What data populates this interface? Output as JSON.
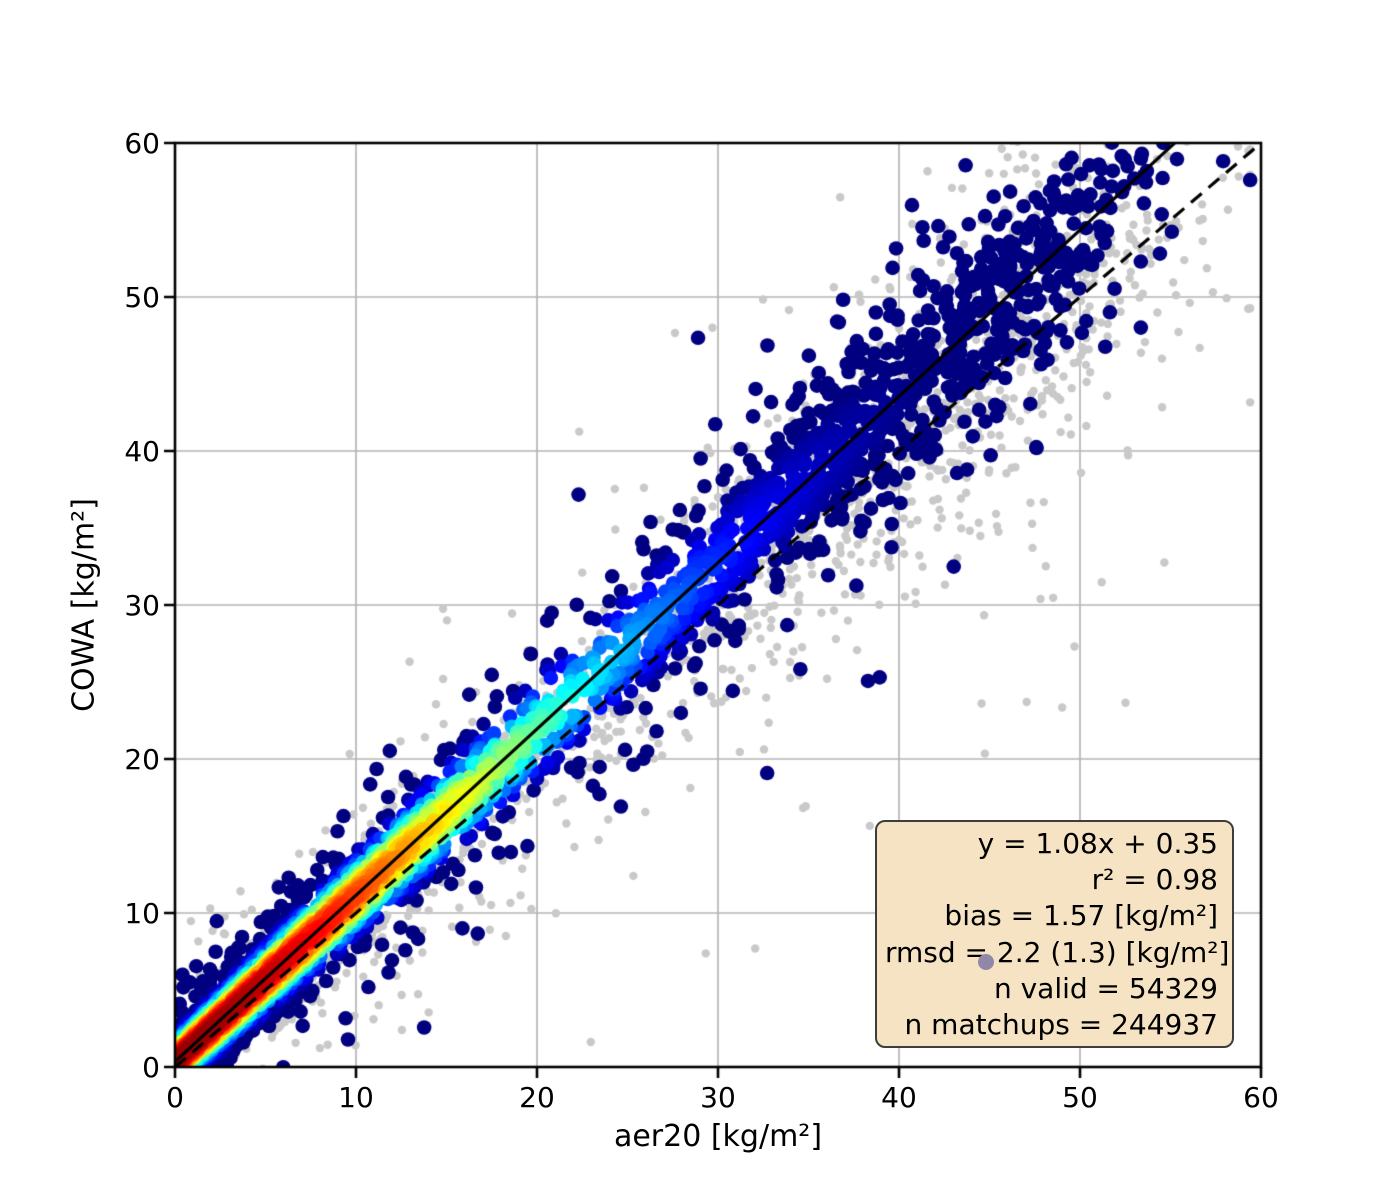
{
  "chart_data": {
    "type": "scatter",
    "title": "",
    "xlabel": "aer20 [kg/m²]",
    "ylabel": "COWA [kg/m²]",
    "xlim": [
      0,
      60
    ],
    "ylim": [
      0,
      60
    ],
    "xticks": [
      "0",
      "10",
      "20",
      "30",
      "40",
      "50",
      "60"
    ],
    "yticks": [
      "0",
      "10",
      "20",
      "30",
      "40",
      "50",
      "60"
    ],
    "grid": true,
    "grid_color": "#b5b5b5",
    "spine_color": "#000000",
    "identity_line": {
      "style": "dashed",
      "color": "#000000",
      "from": [
        0,
        0
      ],
      "to": [
        60,
        60
      ]
    },
    "regression_line": {
      "style": "solid",
      "color": "#000000",
      "slope": 1.08,
      "intercept": 0.35
    },
    "stats": {
      "equation": "y = 1.08x + 0.35",
      "r2": 0.98,
      "bias": "1.57 [kg/m²]",
      "rmsd": "2.2 (1.3) [kg/m²]",
      "n_valid": 54329,
      "n_matchups": 244937
    },
    "stats_box": {
      "lines": [
        "y = 1.08x + 0.35",
        "r² = 0.98",
        "bias = 1.57 [kg/m²]",
        "rmsd = 2.2 (1.3) [kg/m²]",
        "n valid = 54329",
        "n matchups = 244937"
      ],
      "background": "#f5e3c3",
      "border_color": "#3d3d3d"
    },
    "colormap": "jet",
    "background_points": {
      "n": 2400,
      "color": "#c9c9c9",
      "radius": 4.2,
      "slope": 1.02,
      "intercept": 0.2,
      "x_dist": {
        "exp_frac": 0.58,
        "exp_scale": 10,
        "mid_frac": 0.26,
        "mid_mean": 36,
        "mid_sd": 8,
        "hi_mean": 47,
        "hi_sd": 6
      },
      "noise": {
        "sigma0": 1.3,
        "sigma_slope": 0.07,
        "wide_frac": 0.2,
        "wide_mult": 2.8
      }
    },
    "density_points": {
      "n": 3400,
      "radius": 7.3,
      "slope": 1.08,
      "intercept": 0.35,
      "x_dist": {
        "exp_frac": 0.73,
        "exp_scale": 9,
        "mid_frac": 0.2,
        "mid_mean": 36,
        "mid_sd": 7,
        "hi_mean": 46,
        "hi_sd": 5
      },
      "noise": {
        "sigma0": 0.9,
        "sigma_slope": 0.055,
        "wide_frac": 0.12,
        "wide_mult": 2.6
      },
      "density_color": {
        "scale": 0.97,
        "x_scale": 24,
        "x_pow": 2,
        "ring_mult": 0.9,
        "post_gain": 1.06,
        "post_shift": 0.05
      }
    },
    "stray_point": {
      "x": 44.8,
      "y": 6.8,
      "color": "#9187a8"
    }
  }
}
